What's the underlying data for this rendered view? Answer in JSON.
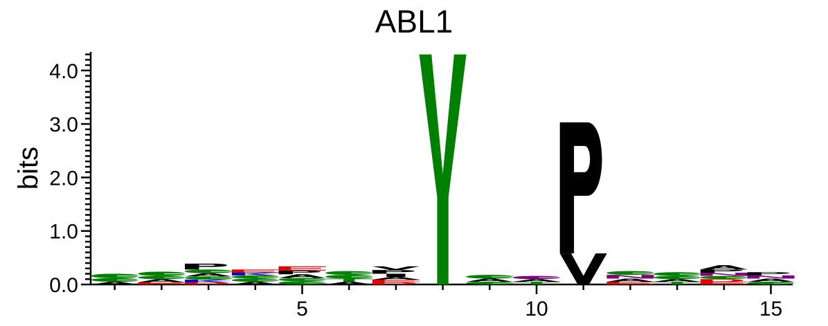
{
  "chart_data": {
    "type": "sequence-logo",
    "title": "ABL1",
    "ylabel": "bits",
    "xlabel": "",
    "ylim": [
      0,
      4.32
    ],
    "ytick_labels": [
      "0.0",
      "1.0",
      "2.0",
      "3.0",
      "4.0"
    ],
    "yticks": [
      0,
      1,
      2,
      3,
      4
    ],
    "xticks": [
      5,
      10,
      15
    ],
    "xtick_labels": [
      "5",
      "10",
      "15"
    ],
    "positions": [
      {
        "pos": 1,
        "stack": [
          {
            "letter": "A",
            "bits": 0.05
          },
          {
            "letter": "S",
            "bits": 0.07
          },
          {
            "letter": "G",
            "bits": 0.08
          }
        ]
      },
      {
        "pos": 2,
        "stack": [
          {
            "letter": "E",
            "bits": 0.04
          },
          {
            "letter": "A",
            "bits": 0.06
          },
          {
            "letter": "S",
            "bits": 0.06
          },
          {
            "letter": "G",
            "bits": 0.08
          }
        ]
      },
      {
        "pos": 3,
        "stack": [
          {
            "letter": "D",
            "bits": 0.04
          },
          {
            "letter": "K",
            "bits": 0.05
          },
          {
            "letter": "S",
            "bits": 0.06
          },
          {
            "letter": "A",
            "bits": 0.06
          },
          {
            "letter": "G",
            "bits": 0.07
          },
          {
            "letter": "P",
            "bits": 0.11
          }
        ]
      },
      {
        "pos": 4,
        "stack": [
          {
            "letter": "A",
            "bits": 0.05
          },
          {
            "letter": "S",
            "bits": 0.06
          },
          {
            "letter": "G",
            "bits": 0.06
          },
          {
            "letter": "K",
            "bits": 0.05
          },
          {
            "letter": "E",
            "bits": 0.06
          }
        ]
      },
      {
        "pos": 5,
        "stack": [
          {
            "letter": "G",
            "bits": 0.06
          },
          {
            "letter": "S",
            "bits": 0.06
          },
          {
            "letter": "A",
            "bits": 0.07
          },
          {
            "letter": "P",
            "bits": 0.07
          },
          {
            "letter": "E",
            "bits": 0.08
          }
        ]
      },
      {
        "pos": 6,
        "stack": [
          {
            "letter": "A",
            "bits": 0.05
          },
          {
            "letter": "T",
            "bits": 0.06
          },
          {
            "letter": "S",
            "bits": 0.07
          },
          {
            "letter": "G",
            "bits": 0.07
          }
        ]
      },
      {
        "pos": 7,
        "stack": [
          {
            "letter": "D",
            "bits": 0.04
          },
          {
            "letter": "E",
            "bits": 0.05
          },
          {
            "letter": "A",
            "bits": 0.05
          },
          {
            "letter": "I",
            "bits": 0.06
          },
          {
            "letter": "P",
            "bits": 0.07
          },
          {
            "letter": "V",
            "bits": 0.07
          }
        ]
      },
      {
        "pos": 8,
        "stack": [
          {
            "letter": "Y",
            "bits": 4.3
          }
        ]
      },
      {
        "pos": 9,
        "stack": [
          {
            "letter": "G",
            "bits": 0.05
          },
          {
            "letter": "A",
            "bits": 0.06
          },
          {
            "letter": "S",
            "bits": 0.07
          }
        ]
      },
      {
        "pos": 10,
        "stack": [
          {
            "letter": "T",
            "bits": 0.05
          },
          {
            "letter": "A",
            "bits": 0.05
          },
          {
            "letter": "Q",
            "bits": 0.06
          }
        ]
      },
      {
        "pos": 11,
        "stack": [
          {
            "letter": "V",
            "bits": 0.58
          },
          {
            "letter": "P",
            "bits": 2.45
          }
        ]
      },
      {
        "pos": 12,
        "stack": [
          {
            "letter": "E",
            "bits": 0.05
          },
          {
            "letter": "A",
            "bits": 0.06
          },
          {
            "letter": "N",
            "bits": 0.07
          },
          {
            "letter": "S",
            "bits": 0.07
          }
        ]
      },
      {
        "pos": 13,
        "stack": [
          {
            "letter": "T",
            "bits": 0.05
          },
          {
            "letter": "A",
            "bits": 0.05
          },
          {
            "letter": "S",
            "bits": 0.06
          },
          {
            "letter": "G",
            "bits": 0.07
          }
        ]
      },
      {
        "pos": 14,
        "stack": [
          {
            "letter": "E",
            "bits": 0.05
          },
          {
            "letter": "D",
            "bits": 0.05
          },
          {
            "letter": "G",
            "bits": 0.06
          },
          {
            "letter": "N",
            "bits": 0.06
          },
          {
            "letter": "P",
            "bits": 0.06
          },
          {
            "letter": "A",
            "bits": 0.08
          }
        ]
      },
      {
        "pos": 15,
        "stack": [
          {
            "letter": "S",
            "bits": 0.05
          },
          {
            "letter": "A",
            "bits": 0.06
          },
          {
            "letter": "N",
            "bits": 0.06
          },
          {
            "letter": "P",
            "bits": 0.06
          }
        ]
      }
    ],
    "letter_colors": {
      "A": "#000000",
      "V": "#000000",
      "L": "#000000",
      "I": "#000000",
      "P": "#000000",
      "W": "#000000",
      "F": "#000000",
      "M": "#000000",
      "G": "#008000",
      "S": "#008000",
      "T": "#008000",
      "Y": "#008000",
      "C": "#008000",
      "N": "#800080",
      "Q": "#800080",
      "K": "#0000cc",
      "R": "#0000cc",
      "H": "#0000cc",
      "D": "#e00000",
      "E": "#e00000"
    }
  }
}
